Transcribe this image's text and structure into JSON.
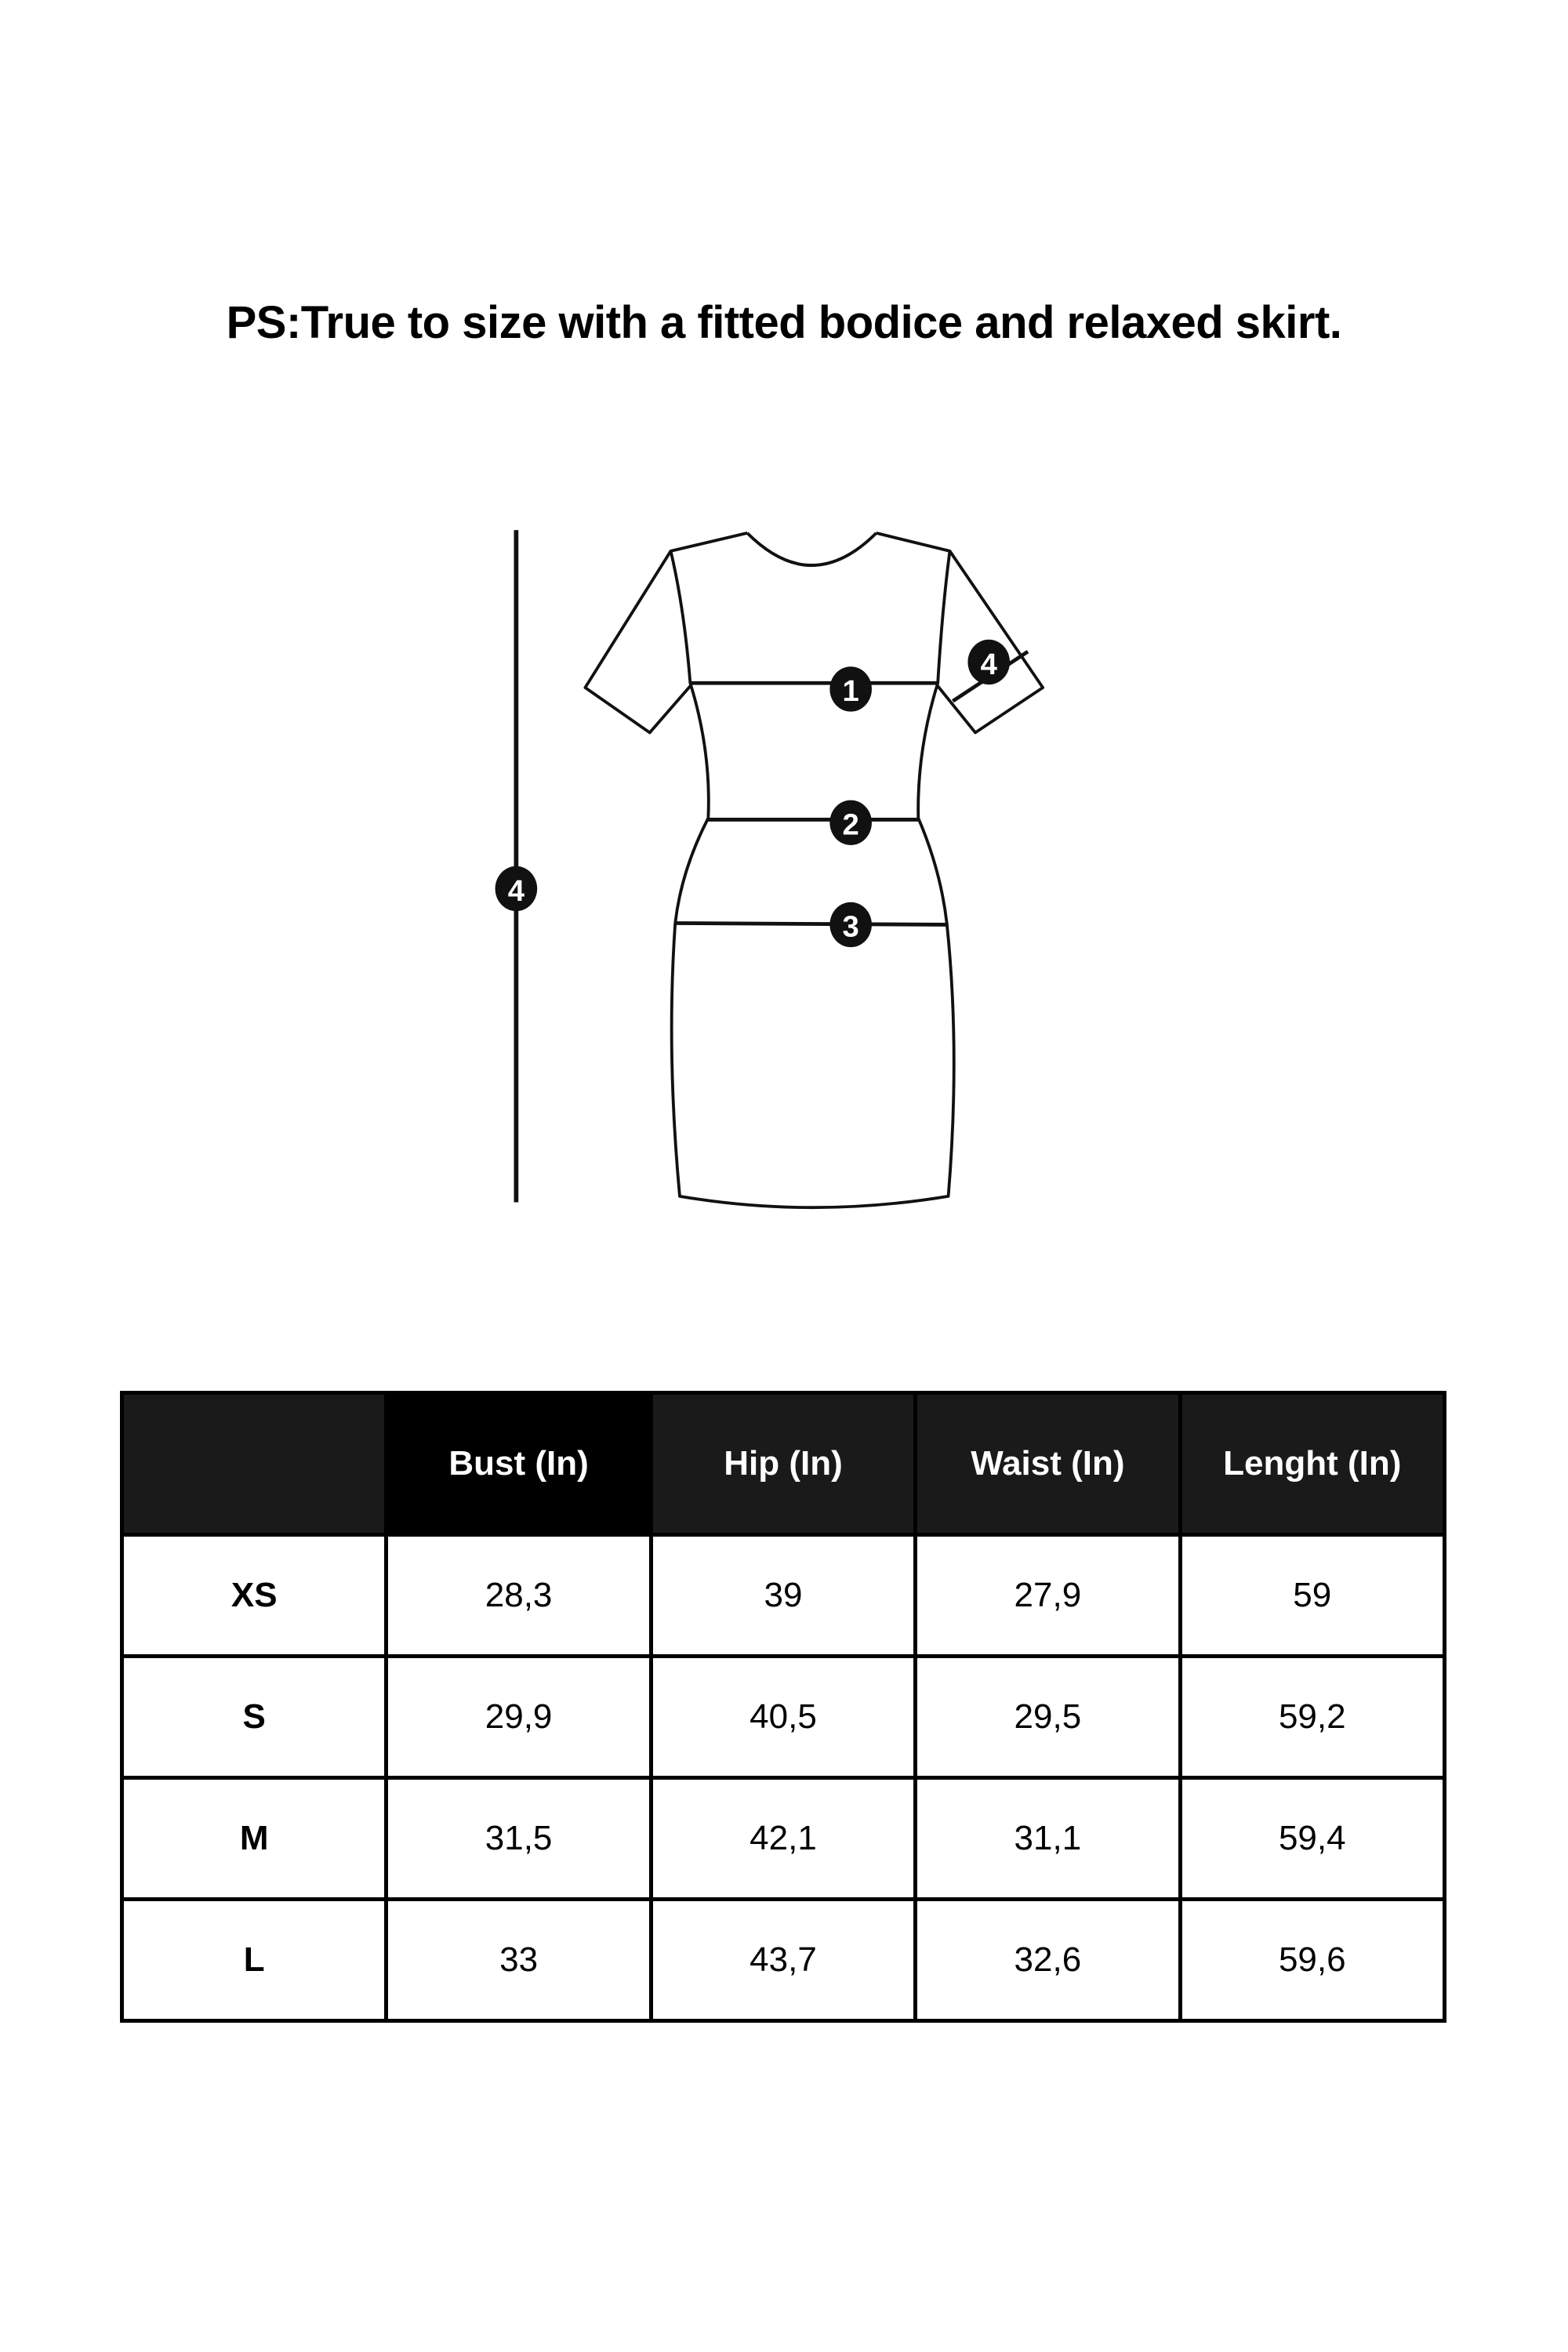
{
  "note": "PS:True to size with a fitted bodice and relaxed skirt.",
  "diagram": {
    "markers": [
      "1",
      "2",
      "3",
      "4",
      "4"
    ]
  },
  "table": {
    "headers": [
      "",
      "Bust (In)",
      "Hip (In)",
      "Waist (In)",
      "Lenght (In)"
    ],
    "rows": [
      [
        "XS",
        "28,3",
        "39",
        "27,9",
        "59"
      ],
      [
        "S",
        "29,9",
        "40,5",
        "29,5",
        "59,2"
      ],
      [
        "M",
        "31,5",
        "42,1",
        "31,1",
        "59,4"
      ],
      [
        "L",
        "33",
        "43,7",
        "32,6",
        "59,6"
      ]
    ]
  }
}
